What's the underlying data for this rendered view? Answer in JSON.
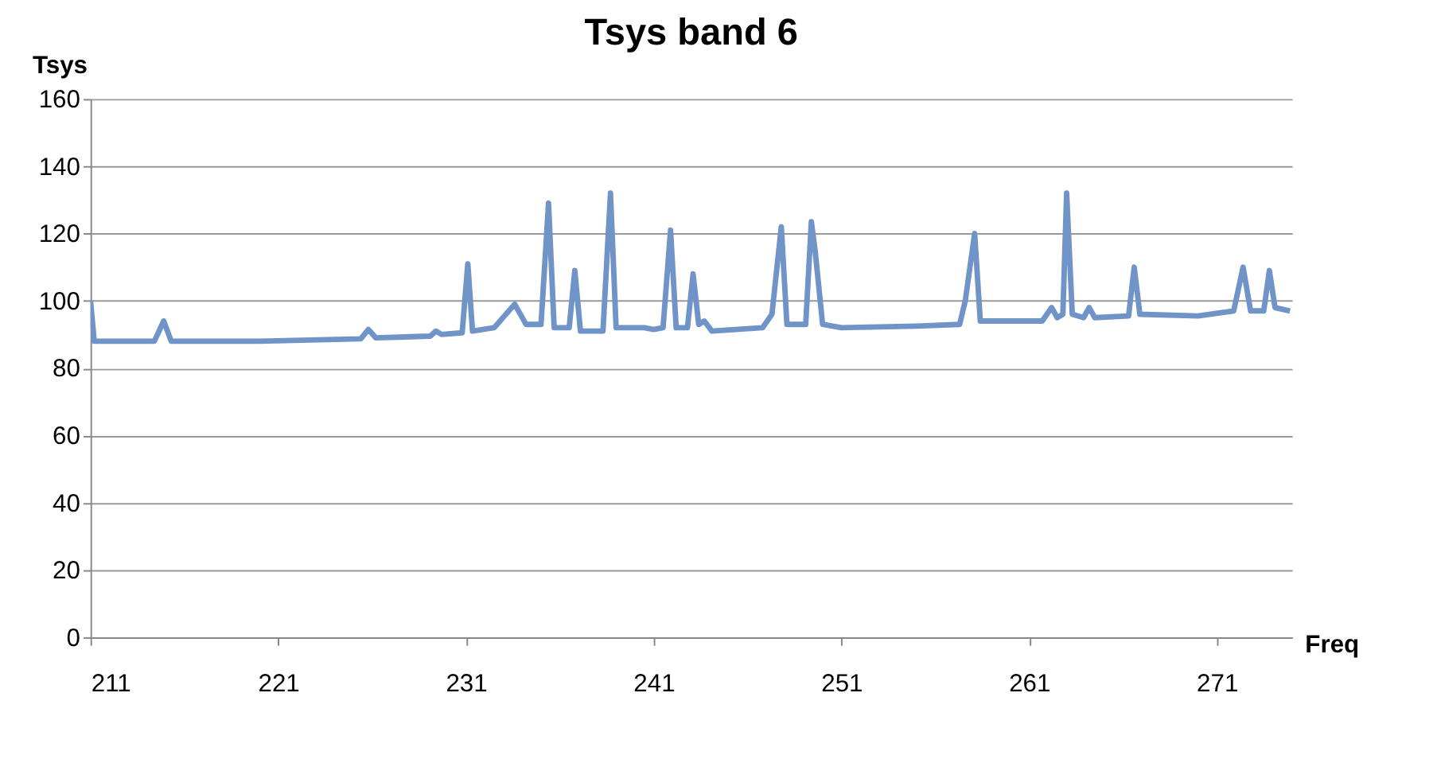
{
  "chart_data": {
    "type": "line",
    "title": "Tsys band 6",
    "xlabel": "Freq",
    "ylabel": "Tsys",
    "xlim": [
      211,
      275
    ],
    "xticks": [
      211,
      221,
      231,
      241,
      251,
      261,
      271
    ],
    "ylim": [
      0,
      160
    ],
    "yticks": [
      0,
      20,
      40,
      60,
      80,
      100,
      120,
      140,
      160
    ],
    "grid": "y",
    "line_style": "solid",
    "series": [
      {
        "color": "#7094c8",
        "x": [
          211,
          211.2,
          214.4,
          214.9,
          215.3,
          220,
          225.4,
          225.8,
          226.2,
          229.1,
          229.4,
          229.7,
          230.8,
          231.1,
          231.35,
          232.5,
          233.6,
          234.2,
          235.0,
          235.4,
          235.7,
          236.5,
          236.8,
          237.1,
          238.3,
          238.7,
          239.0,
          240.5,
          241.0,
          241.5,
          241.9,
          242.2,
          242.8,
          243.1,
          243.4,
          243.7,
          244.1,
          246.8,
          247.3,
          247.8,
          248.1,
          249.1,
          249.4,
          249.6,
          250,
          251,
          255,
          257.3,
          257.6,
          258.1,
          258.4,
          261.7,
          262.2,
          262.5,
          262.8,
          263.0,
          263.3,
          263.9,
          264.2,
          264.5,
          266.3,
          266.6,
          266.9,
          270,
          271.9,
          272.4,
          272.8,
          273.5,
          273.8,
          274.1,
          274.9
        ],
        "values": [
          100,
          88,
          88,
          94,
          88,
          88,
          88.7,
          91.5,
          89,
          89.5,
          91,
          90,
          90.5,
          111,
          91,
          92,
          99,
          93,
          93,
          129,
          92,
          92,
          109,
          91,
          91,
          132,
          92,
          92,
          91.5,
          92,
          121,
          92,
          92,
          108,
          93,
          94,
          91,
          92,
          96,
          122,
          93,
          93,
          123.5,
          115,
          93,
          92,
          92.5,
          93,
          100,
          120,
          94,
          94,
          98,
          95,
          96,
          132,
          96,
          95,
          98,
          95,
          95.5,
          110,
          96,
          95.5,
          97,
          110,
          97,
          97,
          109,
          98,
          97
        ]
      }
    ]
  }
}
